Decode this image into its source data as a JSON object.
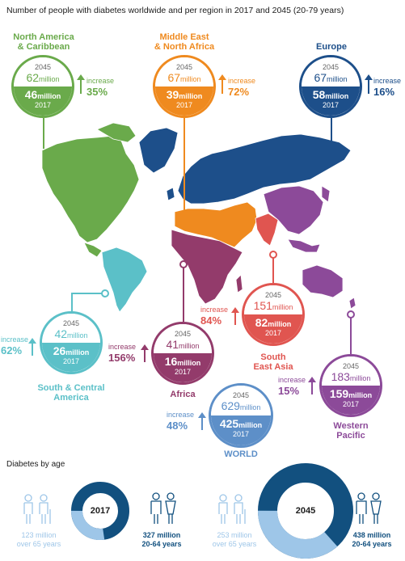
{
  "title": "Number of people with diabetes worldwide and per region in 2017 and 2045 (20-79 years)",
  "colors": {
    "na": "#6aaa4b",
    "mena": "#ef8a1f",
    "europe": "#1d4f8a",
    "sca": "#5bc0c8",
    "africa": "#933b6b",
    "sea": "#e05550",
    "wp": "#8c4a99",
    "world": "#5d8fc8",
    "old": "#9ec6e8",
    "young": "#12507f"
  },
  "labels": {
    "year2045": "2045",
    "year2017": "2017",
    "million": "million",
    "increase": "increase"
  },
  "regions": {
    "na": {
      "name1": "North America",
      "name2": "& Caribbean",
      "v2045": "62",
      "v2017": "46",
      "pct": "35%"
    },
    "mena": {
      "name1": "Middle East",
      "name2": "& North Africa",
      "v2045": "67",
      "v2017": "39",
      "pct": "72%"
    },
    "europe": {
      "name1": "Europe",
      "v2045": "67",
      "v2017": "58",
      "pct": "16%"
    },
    "sca": {
      "name1": "South & Central",
      "name2": "America",
      "v2045": "42",
      "v2017": "26",
      "pct": "62%"
    },
    "africa": {
      "name1": "Africa",
      "v2045": "41",
      "v2017": "16",
      "pct": "156%"
    },
    "sea": {
      "name1": "South",
      "name2": "East Asia",
      "v2045": "151",
      "v2017": "82",
      "pct": "84%"
    },
    "wp": {
      "name1": "Western",
      "name2": "Pacific",
      "v2045": "183",
      "v2017": "159",
      "pct": "15%"
    },
    "world": {
      "name1": "WORLD",
      "v2045": "629",
      "v2017": "425",
      "pct": "48%"
    }
  },
  "age": {
    "heading": "Diabetes by age",
    "y2017": {
      "year": "2017",
      "old_value": "123 million",
      "old_label": "over 65 years",
      "young_value": "327 million",
      "young_label": "20-64 years",
      "old_share": 0.273
    },
    "y2045": {
      "year": "2045",
      "old_value": "253 million",
      "old_label": "over 65 years",
      "young_value": "438 million",
      "young_label": "20-64 years",
      "old_share": 0.366
    }
  }
}
